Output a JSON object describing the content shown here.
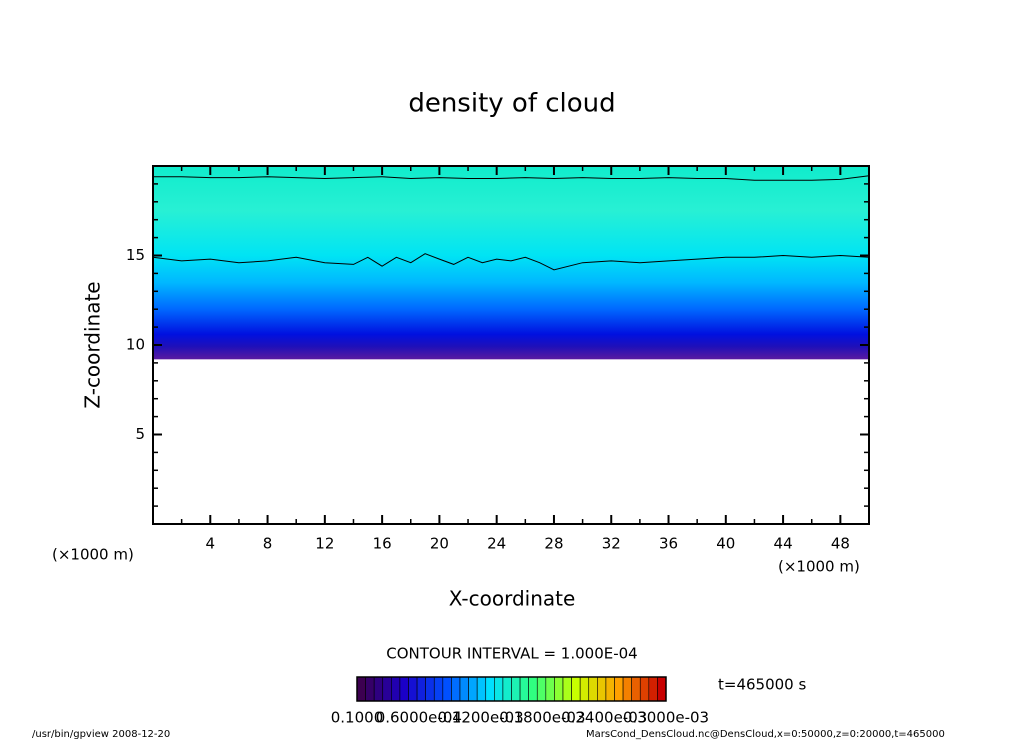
{
  "chart_data": {
    "type": "contour",
    "title": "density of cloud",
    "x_label": "X-coordinate",
    "y_label": "Z-coordinate",
    "x_unit": "(×1000 m)",
    "y_unit": "(×1000 m)",
    "xlim": [
      0,
      50
    ],
    "ylim": [
      0,
      20
    ],
    "xticks": [
      4,
      8,
      12,
      16,
      20,
      24,
      28,
      32,
      36,
      40,
      44,
      48
    ],
    "xminor_ticks": [
      2,
      6,
      10,
      14,
      18,
      22,
      26,
      30,
      34,
      38,
      42,
      46,
      50
    ],
    "yticks": [
      5,
      10,
      15
    ],
    "yminor_ticks": [
      1,
      2,
      3,
      4,
      6,
      7,
      8,
      9,
      11,
      12,
      13,
      14,
      16,
      17,
      18,
      19
    ],
    "shading": [
      {
        "z": 9.2,
        "color": "#5a1aa0"
      },
      {
        "z": 9.9,
        "color": "#2010b8"
      },
      {
        "z": 10.6,
        "color": "#0010e0"
      },
      {
        "z": 12,
        "color": "#0068ff"
      },
      {
        "z": 13.5,
        "color": "#00b8ff"
      },
      {
        "z": 15,
        "color": "#00e4f4"
      },
      {
        "z": 17.5,
        "color": "#28f0d4"
      },
      {
        "z": 20,
        "color": "#10eccc"
      }
    ],
    "contours": [
      {
        "x": [
          0,
          2,
          4,
          6,
          8,
          10,
          12,
          14,
          16,
          18,
          20,
          22,
          24,
          26,
          28,
          30,
          32,
          34,
          36,
          38,
          40,
          42,
          44,
          46,
          48,
          50
        ],
        "z": [
          19.4,
          19.4,
          19.35,
          19.35,
          19.4,
          19.35,
          19.3,
          19.35,
          19.4,
          19.3,
          19.35,
          19.3,
          19.3,
          19.35,
          19.3,
          19.35,
          19.3,
          19.3,
          19.35,
          19.3,
          19.3,
          19.2,
          19.2,
          19.2,
          19.25,
          19.45
        ]
      },
      {
        "x": [
          0,
          2,
          4,
          6,
          8,
          10,
          12,
          14,
          15,
          16,
          17,
          18,
          19,
          20,
          21,
          22,
          23,
          24,
          25,
          26,
          27,
          28,
          30,
          32,
          34,
          36,
          38,
          40,
          42,
          44,
          46,
          48,
          50
        ],
        "z": [
          14.9,
          14.7,
          14.8,
          14.6,
          14.7,
          14.9,
          14.6,
          14.5,
          14.9,
          14.4,
          14.9,
          14.6,
          15.1,
          14.8,
          14.5,
          14.9,
          14.6,
          14.8,
          14.7,
          14.9,
          14.6,
          14.2,
          14.6,
          14.7,
          14.6,
          14.7,
          14.8,
          14.9,
          14.9,
          15,
          14.9,
          15,
          14.9
        ]
      }
    ],
    "contour_interval": "CONTOUR INTERVAL = 1.000E-04",
    "time_label": "t=465000 s",
    "colorbar": {
      "stops": [
        "#3c0050",
        "#1a00c8",
        "#0050ff",
        "#00e0ff",
        "#30ff80",
        "#c8ff00",
        "#ffa000",
        "#c80000"
      ],
      "count": 36,
      "labels": [
        "0.1000",
        "0.6000e-04",
        "0.1200e-03",
        "0.1800e-03",
        "0.2400e-03",
        "0.3000e-03"
      ]
    },
    "footer_left": "/usr/bin/gpview  2008-12-20",
    "footer_right": "MarsCond_DensCloud.nc@DensCloud,x=0:50000,z=0:20000,t=465000"
  }
}
